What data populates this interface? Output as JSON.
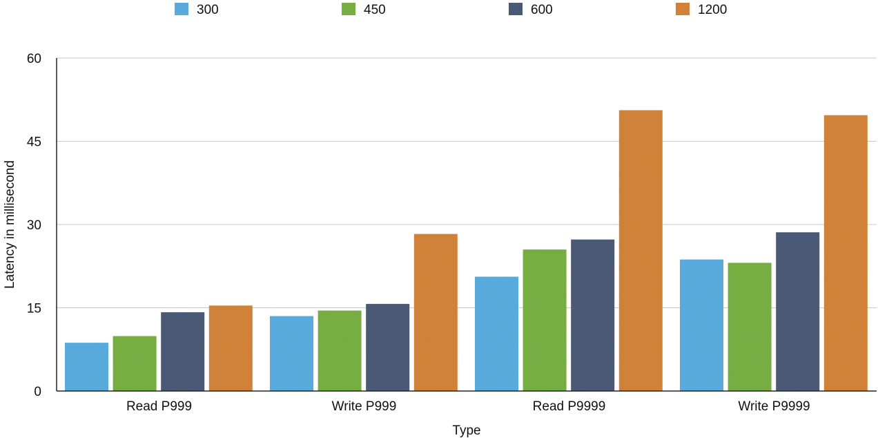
{
  "chart_data": {
    "type": "bar",
    "title": "",
    "xlabel": "Type",
    "ylabel": "Latency in millisecond",
    "categories": [
      "Read P999",
      "Write P999",
      "Read P9999",
      "Write P9999"
    ],
    "series": [
      {
        "name": "300",
        "color": "#5aaee0",
        "values": [
          8.7,
          13.5,
          20.6,
          23.7
        ]
      },
      {
        "name": "450",
        "color": "#78b143",
        "values": [
          9.9,
          14.5,
          25.5,
          23.1
        ]
      },
      {
        "name": "600",
        "color": "#4c5b78",
        "values": [
          14.2,
          15.7,
          27.3,
          28.6
        ]
      },
      {
        "name": "1200",
        "color": "#d4843a",
        "values": [
          15.4,
          28.3,
          50.6,
          49.7
        ]
      }
    ],
    "ylim": [
      0,
      60
    ],
    "yticks": [
      0,
      15,
      30,
      45,
      60
    ],
    "grid": true,
    "legend_position": "top"
  }
}
